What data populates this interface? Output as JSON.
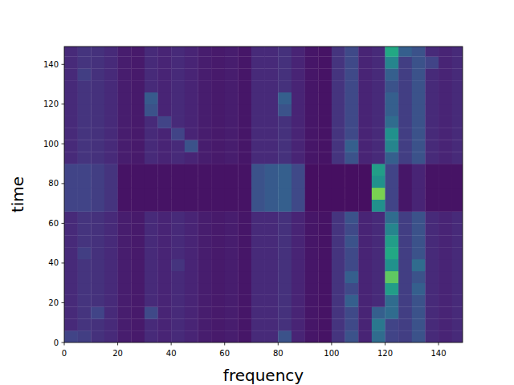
{
  "chart_data": {
    "type": "heatmap",
    "x_label": "frequency",
    "y_label": "time",
    "xlim": [
      0,
      149
    ],
    "ylim": [
      0,
      149
    ],
    "xticks": [
      0,
      20,
      40,
      60,
      80,
      100,
      120,
      140
    ],
    "yticks": [
      0,
      20,
      40,
      60,
      80,
      100,
      120,
      140
    ],
    "zlim": [
      0,
      1
    ],
    "x_edges": [
      0,
      5,
      10,
      15,
      20,
      25,
      30,
      35,
      40,
      45,
      50,
      55,
      60,
      65,
      70,
      75,
      80,
      85,
      90,
      95,
      100,
      105,
      110,
      115,
      120,
      125,
      130,
      135,
      140,
      145,
      149
    ],
    "y_edges": [
      0,
      6,
      12,
      18,
      24,
      30,
      36,
      42,
      48,
      54,
      60,
      66,
      72,
      78,
      84,
      90,
      96,
      102,
      108,
      114,
      120,
      126,
      132,
      138,
      144,
      149
    ],
    "z": [
      [
        0.2,
        0.18,
        0.14,
        0.12,
        0.08,
        0.07,
        0.12,
        0.1,
        0.12,
        0.1,
        0.08,
        0.07,
        0.08,
        0.06,
        0.12,
        0.12,
        0.25,
        0.1,
        0.06,
        0.05,
        0.15,
        0.25,
        0.1,
        0.35,
        0.2,
        0.18,
        0.25,
        0.12,
        0.1,
        0.12
      ],
      [
        0.12,
        0.15,
        0.14,
        0.12,
        0.08,
        0.07,
        0.12,
        0.1,
        0.12,
        0.1,
        0.08,
        0.07,
        0.08,
        0.06,
        0.12,
        0.12,
        0.14,
        0.1,
        0.06,
        0.05,
        0.15,
        0.22,
        0.1,
        0.4,
        0.2,
        0.18,
        0.25,
        0.12,
        0.1,
        0.12
      ],
      [
        0.12,
        0.15,
        0.2,
        0.12,
        0.08,
        0.07,
        0.22,
        0.1,
        0.12,
        0.1,
        0.08,
        0.07,
        0.08,
        0.06,
        0.12,
        0.12,
        0.14,
        0.1,
        0.06,
        0.05,
        0.15,
        0.22,
        0.1,
        0.3,
        0.35,
        0.18,
        0.25,
        0.12,
        0.1,
        0.12
      ],
      [
        0.12,
        0.15,
        0.14,
        0.12,
        0.08,
        0.07,
        0.12,
        0.1,
        0.12,
        0.1,
        0.08,
        0.07,
        0.08,
        0.06,
        0.12,
        0.12,
        0.14,
        0.1,
        0.06,
        0.05,
        0.15,
        0.3,
        0.1,
        0.12,
        0.35,
        0.18,
        0.25,
        0.12,
        0.1,
        0.12
      ],
      [
        0.12,
        0.15,
        0.14,
        0.12,
        0.08,
        0.07,
        0.12,
        0.1,
        0.12,
        0.1,
        0.08,
        0.07,
        0.08,
        0.06,
        0.12,
        0.12,
        0.14,
        0.1,
        0.06,
        0.05,
        0.15,
        0.22,
        0.1,
        0.12,
        0.55,
        0.18,
        0.3,
        0.12,
        0.1,
        0.12
      ],
      [
        0.12,
        0.15,
        0.14,
        0.12,
        0.08,
        0.07,
        0.12,
        0.1,
        0.12,
        0.1,
        0.08,
        0.07,
        0.08,
        0.06,
        0.12,
        0.12,
        0.14,
        0.1,
        0.06,
        0.05,
        0.15,
        0.3,
        0.1,
        0.12,
        0.75,
        0.18,
        0.25,
        0.12,
        0.1,
        0.12
      ],
      [
        0.12,
        0.15,
        0.14,
        0.12,
        0.08,
        0.07,
        0.12,
        0.1,
        0.15,
        0.1,
        0.08,
        0.07,
        0.08,
        0.06,
        0.12,
        0.12,
        0.14,
        0.1,
        0.06,
        0.05,
        0.15,
        0.22,
        0.1,
        0.12,
        0.5,
        0.18,
        0.35,
        0.12,
        0.1,
        0.12
      ],
      [
        0.12,
        0.18,
        0.14,
        0.12,
        0.08,
        0.07,
        0.12,
        0.1,
        0.12,
        0.1,
        0.08,
        0.07,
        0.08,
        0.06,
        0.12,
        0.12,
        0.14,
        0.1,
        0.06,
        0.05,
        0.15,
        0.22,
        0.1,
        0.12,
        0.6,
        0.18,
        0.25,
        0.12,
        0.1,
        0.12
      ],
      [
        0.12,
        0.15,
        0.14,
        0.12,
        0.08,
        0.07,
        0.12,
        0.1,
        0.12,
        0.1,
        0.08,
        0.07,
        0.08,
        0.06,
        0.12,
        0.12,
        0.14,
        0.1,
        0.06,
        0.05,
        0.15,
        0.25,
        0.1,
        0.12,
        0.55,
        0.18,
        0.25,
        0.12,
        0.1,
        0.12
      ],
      [
        0.12,
        0.15,
        0.14,
        0.12,
        0.08,
        0.07,
        0.12,
        0.1,
        0.12,
        0.1,
        0.08,
        0.07,
        0.08,
        0.06,
        0.12,
        0.12,
        0.14,
        0.1,
        0.06,
        0.05,
        0.15,
        0.22,
        0.1,
        0.12,
        0.45,
        0.18,
        0.25,
        0.12,
        0.1,
        0.12
      ],
      [
        0.12,
        0.15,
        0.14,
        0.12,
        0.08,
        0.07,
        0.12,
        0.1,
        0.12,
        0.1,
        0.08,
        0.07,
        0.08,
        0.06,
        0.12,
        0.12,
        0.14,
        0.1,
        0.06,
        0.05,
        0.15,
        0.25,
        0.1,
        0.12,
        0.35,
        0.18,
        0.25,
        0.12,
        0.1,
        0.12
      ],
      [
        0.2,
        0.2,
        0.18,
        0.15,
        0.05,
        0.05,
        0.05,
        0.05,
        0.05,
        0.05,
        0.05,
        0.05,
        0.05,
        0.05,
        0.25,
        0.28,
        0.3,
        0.22,
        0.04,
        0.04,
        0.04,
        0.04,
        0.04,
        0.5,
        0.2,
        0.06,
        0.1,
        0.05,
        0.05,
        0.05
      ],
      [
        0.2,
        0.2,
        0.18,
        0.15,
        0.05,
        0.05,
        0.05,
        0.05,
        0.05,
        0.05,
        0.05,
        0.05,
        0.05,
        0.05,
        0.25,
        0.28,
        0.3,
        0.22,
        0.04,
        0.04,
        0.04,
        0.04,
        0.04,
        0.8,
        0.2,
        0.06,
        0.1,
        0.05,
        0.05,
        0.05
      ],
      [
        0.2,
        0.2,
        0.18,
        0.15,
        0.05,
        0.05,
        0.05,
        0.05,
        0.05,
        0.05,
        0.05,
        0.05,
        0.05,
        0.05,
        0.25,
        0.28,
        0.3,
        0.22,
        0.04,
        0.04,
        0.04,
        0.04,
        0.04,
        0.5,
        0.2,
        0.06,
        0.1,
        0.05,
        0.05,
        0.05
      ],
      [
        0.2,
        0.2,
        0.18,
        0.15,
        0.05,
        0.05,
        0.05,
        0.05,
        0.05,
        0.05,
        0.05,
        0.05,
        0.05,
        0.05,
        0.25,
        0.28,
        0.3,
        0.22,
        0.04,
        0.04,
        0.04,
        0.04,
        0.04,
        0.55,
        0.2,
        0.06,
        0.1,
        0.05,
        0.05,
        0.05
      ],
      [
        0.12,
        0.15,
        0.14,
        0.12,
        0.08,
        0.07,
        0.12,
        0.1,
        0.12,
        0.1,
        0.08,
        0.07,
        0.08,
        0.06,
        0.12,
        0.12,
        0.14,
        0.1,
        0.06,
        0.05,
        0.15,
        0.25,
        0.1,
        0.12,
        0.3,
        0.18,
        0.25,
        0.12,
        0.1,
        0.12
      ],
      [
        0.12,
        0.15,
        0.14,
        0.12,
        0.08,
        0.07,
        0.12,
        0.1,
        0.12,
        0.25,
        0.08,
        0.07,
        0.08,
        0.06,
        0.12,
        0.12,
        0.14,
        0.1,
        0.06,
        0.05,
        0.15,
        0.3,
        0.1,
        0.12,
        0.45,
        0.18,
        0.25,
        0.12,
        0.1,
        0.12
      ],
      [
        0.12,
        0.15,
        0.14,
        0.12,
        0.08,
        0.07,
        0.12,
        0.1,
        0.2,
        0.1,
        0.08,
        0.07,
        0.08,
        0.06,
        0.12,
        0.12,
        0.14,
        0.1,
        0.06,
        0.05,
        0.15,
        0.22,
        0.1,
        0.12,
        0.5,
        0.18,
        0.25,
        0.12,
        0.1,
        0.12
      ],
      [
        0.12,
        0.15,
        0.14,
        0.12,
        0.08,
        0.07,
        0.12,
        0.2,
        0.12,
        0.1,
        0.08,
        0.07,
        0.08,
        0.06,
        0.12,
        0.12,
        0.14,
        0.1,
        0.06,
        0.05,
        0.15,
        0.22,
        0.1,
        0.12,
        0.35,
        0.18,
        0.25,
        0.12,
        0.1,
        0.12
      ],
      [
        0.12,
        0.15,
        0.14,
        0.12,
        0.08,
        0.07,
        0.25,
        0.1,
        0.12,
        0.1,
        0.08,
        0.07,
        0.08,
        0.06,
        0.12,
        0.12,
        0.25,
        0.1,
        0.06,
        0.05,
        0.15,
        0.22,
        0.1,
        0.12,
        0.3,
        0.18,
        0.25,
        0.12,
        0.1,
        0.12
      ],
      [
        0.12,
        0.15,
        0.14,
        0.12,
        0.08,
        0.07,
        0.28,
        0.1,
        0.12,
        0.1,
        0.08,
        0.07,
        0.08,
        0.06,
        0.12,
        0.12,
        0.3,
        0.1,
        0.06,
        0.05,
        0.15,
        0.22,
        0.1,
        0.12,
        0.3,
        0.18,
        0.25,
        0.12,
        0.1,
        0.12
      ],
      [
        0.12,
        0.15,
        0.14,
        0.12,
        0.08,
        0.07,
        0.12,
        0.1,
        0.12,
        0.1,
        0.08,
        0.07,
        0.08,
        0.06,
        0.12,
        0.12,
        0.14,
        0.1,
        0.06,
        0.05,
        0.15,
        0.22,
        0.1,
        0.12,
        0.25,
        0.18,
        0.25,
        0.12,
        0.1,
        0.12
      ],
      [
        0.12,
        0.18,
        0.14,
        0.12,
        0.08,
        0.07,
        0.12,
        0.1,
        0.12,
        0.1,
        0.08,
        0.07,
        0.08,
        0.06,
        0.12,
        0.12,
        0.14,
        0.1,
        0.06,
        0.05,
        0.15,
        0.22,
        0.1,
        0.12,
        0.3,
        0.18,
        0.25,
        0.12,
        0.1,
        0.12
      ],
      [
        0.12,
        0.15,
        0.14,
        0.12,
        0.08,
        0.07,
        0.12,
        0.1,
        0.12,
        0.1,
        0.08,
        0.07,
        0.08,
        0.06,
        0.12,
        0.12,
        0.14,
        0.1,
        0.06,
        0.05,
        0.15,
        0.22,
        0.1,
        0.12,
        0.45,
        0.18,
        0.25,
        0.2,
        0.1,
        0.12
      ],
      [
        0.12,
        0.15,
        0.14,
        0.12,
        0.08,
        0.07,
        0.12,
        0.1,
        0.12,
        0.1,
        0.08,
        0.07,
        0.08,
        0.06,
        0.12,
        0.12,
        0.14,
        0.1,
        0.06,
        0.05,
        0.15,
        0.22,
        0.1,
        0.12,
        0.6,
        0.3,
        0.25,
        0.12,
        0.1,
        0.12
      ]
    ]
  }
}
